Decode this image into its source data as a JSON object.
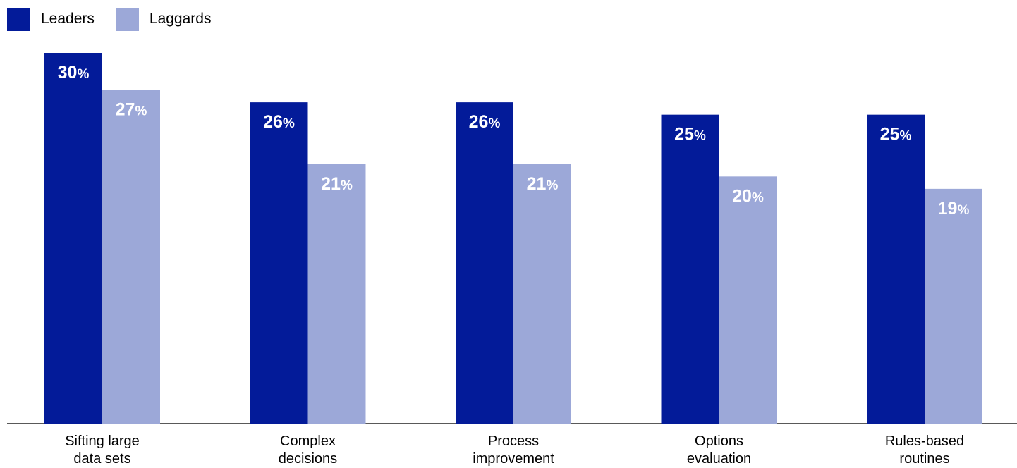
{
  "chart_data": {
    "type": "bar",
    "categories": [
      [
        "Sifting large",
        "data sets"
      ],
      [
        "Complex",
        "decisions"
      ],
      [
        "Process",
        "improvement"
      ],
      [
        "Options",
        "evaluation"
      ],
      [
        "Rules-based",
        "routines"
      ]
    ],
    "series": [
      {
        "name": "Leaders",
        "color": "#031b99",
        "values": [
          30,
          26,
          26,
          25,
          25
        ]
      },
      {
        "name": "Laggards",
        "color": "#9ca8d8",
        "values": [
          27,
          21,
          21,
          20,
          19
        ]
      }
    ],
    "value_suffix": "%",
    "ylim": [
      0,
      30
    ],
    "grid": false,
    "legend_position": "top-left"
  }
}
